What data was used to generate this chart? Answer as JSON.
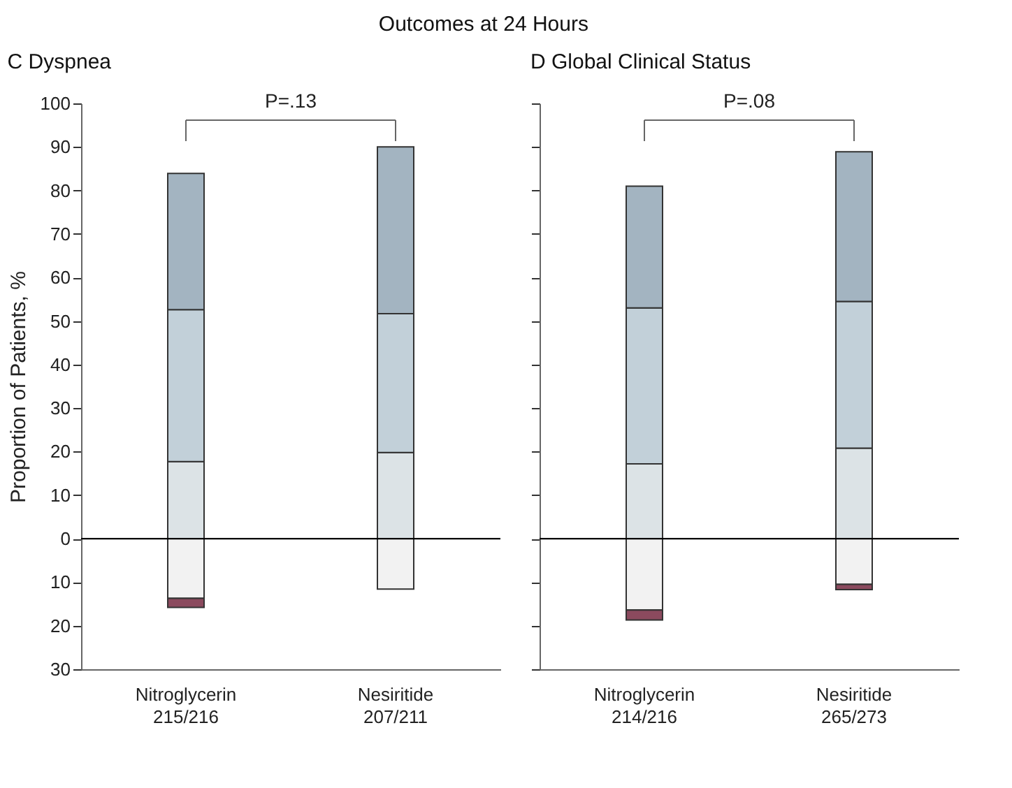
{
  "chart_data": [
    {
      "type": "bar",
      "stacked": true,
      "title": "C Dyspnea",
      "ylabel": "Proportion of Patients, %",
      "annotations": [
        "Outcomes at 24 Hours",
        "P=.13"
      ],
      "categories": [
        "Nitroglycerin\n215/216",
        "Nesiritide\n207/211"
      ],
      "series": [
        {
          "color": "#dce3e6",
          "values": [
            17.7,
            19.8
          ]
        },
        {
          "color": "#c2d0d9",
          "values": [
            34.9,
            31.9
          ]
        },
        {
          "color": "#a3b4c1",
          "values": [
            31.3,
            38.3
          ]
        },
        {
          "color": "#f2f2f2",
          "values": [
            -13.7,
            -11.6
          ]
        },
        {
          "color": "#8b4a5e",
          "values": [
            -2.1,
            null
          ]
        }
      ],
      "ylim": [
        -30,
        100
      ],
      "yticks": [
        {
          "value": -30,
          "label": "30"
        },
        {
          "value": -20,
          "label": "20"
        },
        {
          "value": -10,
          "label": "10"
        },
        0,
        10,
        20,
        30,
        40,
        50,
        60,
        70,
        80,
        90,
        100
      ],
      "ref_lines": [
        {
          "axis": "y",
          "value": 0,
          "label": null
        }
      ],
      "grid": false,
      "legend": false
    },
    {
      "type": "bar",
      "stacked": true,
      "title": "D Global Clinical Status",
      "annotations": [
        "P=.08"
      ],
      "categories": [
        "Nitroglycerin\n214/216",
        "Nesiritide\n265/273"
      ],
      "series": [
        {
          "color": "#dce3e6",
          "values": [
            17.2,
            20.8
          ]
        },
        {
          "color": "#c2d0d9",
          "values": [
            35.8,
            33.7
          ]
        },
        {
          "color": "#a3b4c1",
          "values": [
            28,
            34.4
          ]
        },
        {
          "color": "#f2f2f2",
          "values": [
            -16.4,
            -10.5
          ]
        },
        {
          "color": "#8b4a5e",
          "values": [
            -2.3,
            -1.2
          ]
        }
      ],
      "ylim": [
        -30,
        100
      ],
      "yticks": [
        -30,
        -20,
        -10,
        0,
        10,
        20,
        30,
        40,
        50,
        60,
        70,
        80,
        90,
        100
      ],
      "tick_labels": "x",
      "ref_lines": [
        {
          "axis": "y",
          "value": 0,
          "label": null
        }
      ],
      "grid": false,
      "legend": false
    }
  ]
}
